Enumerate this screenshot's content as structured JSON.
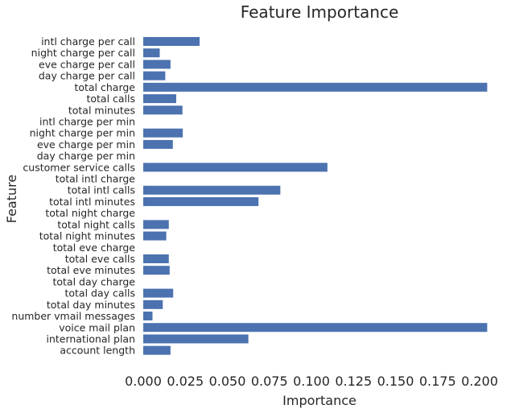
{
  "chart_data": {
    "type": "bar",
    "orientation": "horizontal",
    "title": "Feature Importance",
    "xlabel": "Importance",
    "ylabel": "Feature",
    "xlim": [
      0.0,
      0.205
    ],
    "xticks": [
      "0.000",
      "0.025",
      "0.050",
      "0.075",
      "0.100",
      "0.125",
      "0.150",
      "0.175",
      "0.200"
    ],
    "grid": false,
    "bar_color": "#4c72b0",
    "categories": [
      "intl charge per call",
      "night charge per call",
      "eve charge per call",
      "day charge per call",
      "total charge",
      "total calls",
      "total minutes",
      "intl charge per min",
      "night charge per min",
      "eve charge per min",
      "day charge per min",
      "customer service calls",
      "total intl charge",
      "total intl calls",
      "total intl minutes",
      "total night charge",
      "total night calls",
      "total night minutes",
      "total eve charge",
      "total eve calls",
      "total eve minutes",
      "total day charge",
      "total day calls",
      "total day minutes",
      "number vmail messages",
      "voice mail plan",
      "international plan",
      "account length"
    ],
    "values": [
      0.0335,
      0.0098,
      0.0162,
      0.0131,
      0.2045,
      0.0196,
      0.0233,
      0.0,
      0.0235,
      0.0176,
      0.0,
      0.1095,
      0.0,
      0.0815,
      0.0685,
      0.0,
      0.0152,
      0.0137,
      0.0,
      0.0152,
      0.0157,
      0.0,
      0.0178,
      0.0116,
      0.0055,
      0.2045,
      0.0625,
      0.0162
    ]
  }
}
